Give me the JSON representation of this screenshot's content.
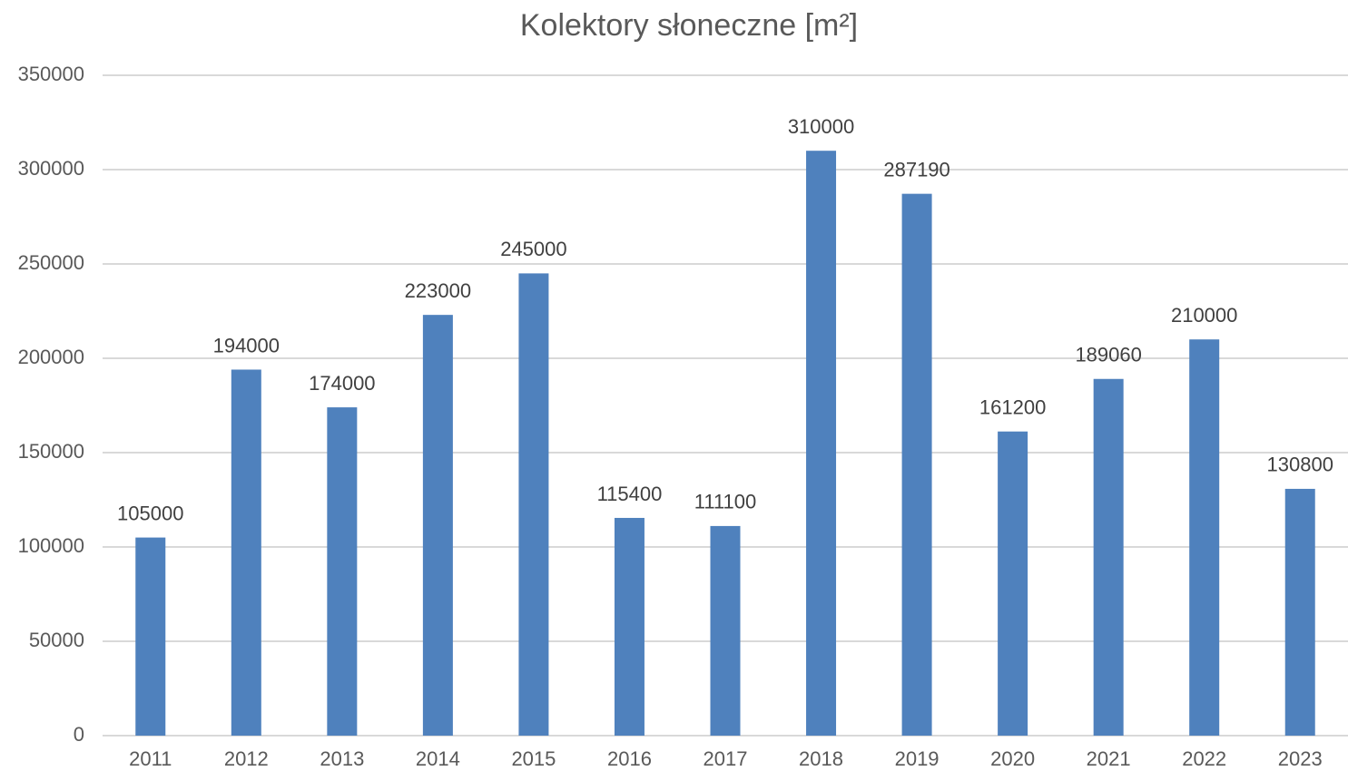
{
  "chart_data": {
    "type": "bar",
    "title": "Kolektory słoneczne [m²]",
    "categories": [
      "2011",
      "2012",
      "2013",
      "2014",
      "2015",
      "2016",
      "2017",
      "2018",
      "2019",
      "2020",
      "2021",
      "2022",
      "2023"
    ],
    "values": [
      105000,
      194000,
      174000,
      223000,
      245000,
      115400,
      111100,
      310000,
      287190,
      161200,
      189060,
      210000,
      130800
    ],
    "color": "#4f81bd",
    "ylim": [
      0,
      350000
    ],
    "yticks": [
      0,
      50000,
      100000,
      150000,
      200000,
      250000,
      300000,
      350000
    ],
    "grid": true,
    "data_labels": true
  }
}
